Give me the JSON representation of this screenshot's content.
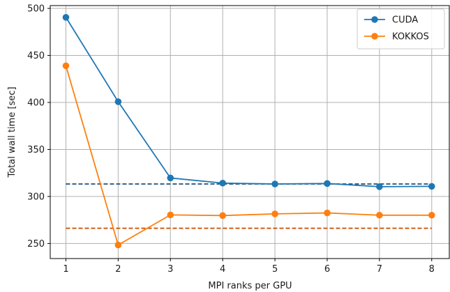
{
  "chart_data": {
    "type": "line",
    "title": "",
    "xlabel": "MPI ranks per GPU",
    "ylabel": "Total wall time [sec]",
    "x": [
      1,
      2,
      3,
      4,
      5,
      6,
      7,
      8
    ],
    "xlim": [
      0.7,
      8.35
    ],
    "ylim": [
      234,
      503
    ],
    "xticks": [
      1,
      2,
      3,
      4,
      5,
      6,
      7,
      8
    ],
    "yticks": [
      250,
      300,
      350,
      400,
      450,
      500
    ],
    "grid": true,
    "legend_position": "top-right",
    "series": [
      {
        "name": "CUDA",
        "color": "#1f77b4",
        "marker": "circle",
        "values": [
          490.5,
          400.8,
          319.7,
          314.2,
          313.3,
          313.8,
          310.4,
          310.8
        ]
      },
      {
        "name": "KOKKOS",
        "color": "#ff7f0e",
        "marker": "circle",
        "values": [
          439.0,
          248.4,
          280.4,
          279.7,
          281.5,
          282.5,
          280.1,
          280.1
        ]
      }
    ],
    "reference_lines": [
      {
        "color": "#1f4e79",
        "style": "dashed",
        "y": 313.3,
        "x_range": [
          1,
          8
        ]
      },
      {
        "color": "#c8550a",
        "style": "dashed",
        "y": 266.2,
        "x_range": [
          1,
          8
        ]
      }
    ]
  }
}
